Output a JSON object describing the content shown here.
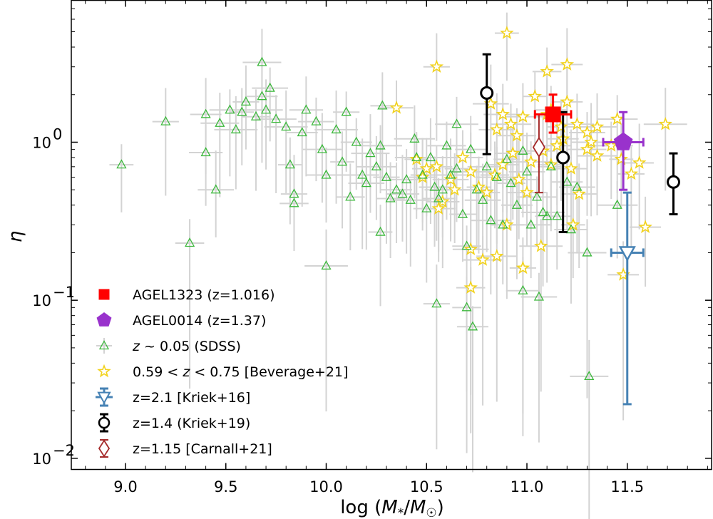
{
  "chart_data": {
    "type": "scatter",
    "title": "",
    "xlabel": "log (M*/M☉)",
    "ylabel": "η",
    "xlim": [
      8.73,
      11.92
    ],
    "ylim": [
      0.0085,
      7.9
    ],
    "yscale": "log",
    "x_ticks": [
      9.0,
      9.5,
      10.0,
      10.5,
      11.0,
      11.5
    ],
    "x_tick_labels": [
      "9.0",
      "9.5",
      "10.0",
      "10.5",
      "11.0",
      "11.5"
    ],
    "y_ticks": [
      0.01,
      0.1,
      1.0
    ],
    "y_tick_labels": [
      {
        "base": "10",
        "exp": "−2"
      },
      {
        "base": "10",
        "exp": "−1"
      },
      {
        "base": "10",
        "exp": "0"
      }
    ],
    "legend_position": "lower-left",
    "legend": [
      {
        "key": "agel1323",
        "label": "AGEL1323 (z=1.016)"
      },
      {
        "key": "agel0014",
        "label": "AGEL0014 (z=1.37)"
      },
      {
        "key": "sdss",
        "label_parts": [
          "z",
          " ~ 0.05 (SDSS)"
        ]
      },
      {
        "key": "beverage",
        "label_parts": [
          "0.59 < ",
          "z",
          " < 0.75 [Beverage+21]"
        ]
      },
      {
        "key": "kriek16",
        "label": "z=2.1 [Kriek+16]"
      },
      {
        "key": "kriek19",
        "label": "z=1.4 (Kriek+19)"
      },
      {
        "key": "carnall",
        "label": "z=1.15 [Carnall+21]"
      }
    ],
    "colors": {
      "agel1323": "#ff0000",
      "agel0014": "#9932cc",
      "sdss": "#3cb83c",
      "beverage": "#f2d21b",
      "kriek16": "#4682b4",
      "kriek19": "#000000",
      "carnall": "#a52a2a",
      "errorbar_light": "#d3d3d3"
    },
    "series": [
      {
        "name": "AGEL1323 (z=1.016)",
        "key": "agel1323",
        "marker": "square",
        "points": [
          {
            "x": 11.13,
            "y": 1.5,
            "xerr": [
              0.09,
              0.09
            ],
            "ylo": 1.15,
            "yhi": 2.0
          }
        ]
      },
      {
        "name": "AGEL0014 (z=1.37)",
        "key": "agel0014",
        "marker": "pentagon",
        "points": [
          {
            "x": 11.48,
            "y": 1.0,
            "xerr": [
              0.1,
              0.1
            ],
            "ylo": 0.5,
            "yhi": 1.55
          }
        ]
      },
      {
        "name": "z=2.1 [Kriek+16]",
        "key": "kriek16",
        "marker": "triangle-down-open",
        "points": [
          {
            "x": 11.5,
            "y": 0.2,
            "xerr": [
              0.08,
              0.08
            ],
            "ylo": 0.022,
            "yhi": 0.48
          }
        ]
      },
      {
        "name": "z=1.4 (Kriek+19)",
        "key": "kriek19",
        "marker": "circle-open",
        "points": [
          {
            "x": 10.8,
            "y": 2.05,
            "ylo": 0.84,
            "yhi": 3.6
          },
          {
            "x": 11.18,
            "y": 0.8,
            "ylo": 0.27,
            "yhi": 1.55
          },
          {
            "x": 11.73,
            "y": 0.56,
            "ylo": 0.35,
            "yhi": 0.85
          }
        ]
      },
      {
        "name": "z=1.15 [Carnall+21]",
        "key": "carnall",
        "marker": "diamond-open",
        "points": [
          {
            "x": 11.06,
            "y": 0.93,
            "ylo": 0.48,
            "yhi": 1.5
          }
        ]
      },
      {
        "name": "z ~ 0.05 (SDSS)",
        "key": "sdss",
        "marker": "triangle-up-open",
        "points": [
          {
            "x": 8.98,
            "y": 0.72
          },
          {
            "x": 9.2,
            "y": 1.35
          },
          {
            "x": 9.32,
            "y": 0.23
          },
          {
            "x": 9.4,
            "y": 1.5
          },
          {
            "x": 9.4,
            "y": 0.86
          },
          {
            "x": 9.45,
            "y": 0.5
          },
          {
            "x": 9.47,
            "y": 1.32
          },
          {
            "x": 9.52,
            "y": 1.6
          },
          {
            "x": 9.55,
            "y": 1.2
          },
          {
            "x": 9.58,
            "y": 1.55
          },
          {
            "x": 9.6,
            "y": 1.8
          },
          {
            "x": 9.65,
            "y": 1.45
          },
          {
            "x": 9.68,
            "y": 1.95
          },
          {
            "x": 9.7,
            "y": 1.6
          },
          {
            "x": 9.72,
            "y": 2.2
          },
          {
            "x": 9.68,
            "y": 3.2
          },
          {
            "x": 9.75,
            "y": 1.4
          },
          {
            "x": 9.8,
            "y": 1.25
          },
          {
            "x": 9.82,
            "y": 0.72
          },
          {
            "x": 9.84,
            "y": 0.47
          },
          {
            "x": 9.84,
            "y": 0.41
          },
          {
            "x": 9.88,
            "y": 1.15
          },
          {
            "x": 9.9,
            "y": 1.6
          },
          {
            "x": 9.95,
            "y": 1.35
          },
          {
            "x": 9.98,
            "y": 0.9
          },
          {
            "x": 10.0,
            "y": 0.62
          },
          {
            "x": 10.05,
            "y": 1.2
          },
          {
            "x": 10.08,
            "y": 0.75
          },
          {
            "x": 10.1,
            "y": 1.55
          },
          {
            "x": 10.12,
            "y": 0.45
          },
          {
            "x": 10.15,
            "y": 1.0
          },
          {
            "x": 10.18,
            "y": 0.62
          },
          {
            "x": 10.2,
            "y": 0.55
          },
          {
            "x": 10.22,
            "y": 0.85
          },
          {
            "x": 10.25,
            "y": 0.7
          },
          {
            "x": 10.27,
            "y": 0.95
          },
          {
            "x": 10.28,
            "y": 1.7
          },
          {
            "x": 10.3,
            "y": 0.6
          },
          {
            "x": 10.32,
            "y": 0.44
          },
          {
            "x": 10.35,
            "y": 0.5
          },
          {
            "x": 10.38,
            "y": 0.47
          },
          {
            "x": 10.4,
            "y": 0.58
          },
          {
            "x": 10.42,
            "y": 0.43
          },
          {
            "x": 10.44,
            "y": 1.05
          },
          {
            "x": 10.45,
            "y": 0.8
          },
          {
            "x": 10.48,
            "y": 0.62
          },
          {
            "x": 10.5,
            "y": 0.38
          },
          {
            "x": 10.52,
            "y": 0.8
          },
          {
            "x": 10.54,
            "y": 0.52
          },
          {
            "x": 10.56,
            "y": 0.44
          },
          {
            "x": 10.58,
            "y": 0.5
          },
          {
            "x": 10.6,
            "y": 0.95
          },
          {
            "x": 10.62,
            "y": 0.62
          },
          {
            "x": 10.65,
            "y": 1.3
          },
          {
            "x": 10.65,
            "y": 0.68
          },
          {
            "x": 10.68,
            "y": 0.35
          },
          {
            "x": 10.7,
            "y": 0.22
          },
          {
            "x": 10.72,
            "y": 0.9
          },
          {
            "x": 10.75,
            "y": 0.5
          },
          {
            "x": 10.78,
            "y": 0.43
          },
          {
            "x": 10.8,
            "y": 0.7
          },
          {
            "x": 10.82,
            "y": 0.32
          },
          {
            "x": 10.85,
            "y": 0.6
          },
          {
            "x": 10.88,
            "y": 0.3
          },
          {
            "x": 10.9,
            "y": 0.78
          },
          {
            "x": 10.92,
            "y": 0.55
          },
          {
            "x": 10.95,
            "y": 0.4
          },
          {
            "x": 10.98,
            "y": 0.88
          },
          {
            "x": 11.0,
            "y": 0.65
          },
          {
            "x": 11.02,
            "y": 0.3
          },
          {
            "x": 11.05,
            "y": 0.45
          },
          {
            "x": 11.08,
            "y": 0.36
          },
          {
            "x": 11.1,
            "y": 0.34
          },
          {
            "x": 11.12,
            "y": 0.7
          },
          {
            "x": 11.15,
            "y": 0.34
          },
          {
            "x": 11.2,
            "y": 0.56
          },
          {
            "x": 11.22,
            "y": 0.28
          },
          {
            "x": 11.25,
            "y": 0.52
          },
          {
            "x": 11.3,
            "y": 0.2
          },
          {
            "x": 11.45,
            "y": 0.4
          },
          {
            "x": 10.0,
            "y": 0.165
          },
          {
            "x": 10.27,
            "y": 0.27
          },
          {
            "x": 10.55,
            "y": 0.095
          },
          {
            "x": 10.7,
            "y": 0.09
          },
          {
            "x": 10.73,
            "y": 0.068
          },
          {
            "x": 10.98,
            "y": 0.115
          },
          {
            "x": 11.06,
            "y": 0.105
          },
          {
            "x": 11.31,
            "y": 0.033
          }
        ]
      },
      {
        "name": "0.59 < z < 0.75 [Beverage+21]",
        "key": "beverage",
        "marker": "star-open",
        "points": [
          {
            "x": 10.9,
            "y": 4.9
          },
          {
            "x": 10.55,
            "y": 3.0
          },
          {
            "x": 11.1,
            "y": 2.8
          },
          {
            "x": 11.2,
            "y": 3.1
          },
          {
            "x": 10.35,
            "y": 1.65
          },
          {
            "x": 10.82,
            "y": 1.75
          },
          {
            "x": 10.88,
            "y": 1.5
          },
          {
            "x": 10.92,
            "y": 1.3
          },
          {
            "x": 10.98,
            "y": 1.45
          },
          {
            "x": 11.04,
            "y": 1.95
          },
          {
            "x": 11.1,
            "y": 1.5
          },
          {
            "x": 11.17,
            "y": 1.25
          },
          {
            "x": 11.2,
            "y": 1.8
          },
          {
            "x": 11.25,
            "y": 1.3
          },
          {
            "x": 11.3,
            "y": 1.15
          },
          {
            "x": 11.35,
            "y": 1.25
          },
          {
            "x": 11.45,
            "y": 1.4
          },
          {
            "x": 11.69,
            "y": 1.3
          },
          {
            "x": 10.45,
            "y": 0.78
          },
          {
            "x": 10.48,
            "y": 0.6
          },
          {
            "x": 10.5,
            "y": 0.68
          },
          {
            "x": 10.55,
            "y": 0.7
          },
          {
            "x": 10.58,
            "y": 0.42
          },
          {
            "x": 10.62,
            "y": 0.58
          },
          {
            "x": 10.64,
            "y": 0.5
          },
          {
            "x": 10.68,
            "y": 0.8
          },
          {
            "x": 10.72,
            "y": 0.65
          },
          {
            "x": 10.76,
            "y": 0.52
          },
          {
            "x": 10.8,
            "y": 0.48
          },
          {
            "x": 10.84,
            "y": 0.62
          },
          {
            "x": 10.88,
            "y": 0.72
          },
          {
            "x": 10.9,
            "y": 0.3
          },
          {
            "x": 10.93,
            "y": 0.85
          },
          {
            "x": 10.96,
            "y": 0.58
          },
          {
            "x": 11.0,
            "y": 0.48
          },
          {
            "x": 11.02,
            "y": 0.75
          },
          {
            "x": 11.08,
            "y": 0.88
          },
          {
            "x": 11.12,
            "y": 0.72
          },
          {
            "x": 11.15,
            "y": 0.95
          },
          {
            "x": 11.18,
            "y": 1.05
          },
          {
            "x": 11.22,
            "y": 0.68
          },
          {
            "x": 11.26,
            "y": 0.47
          },
          {
            "x": 11.3,
            "y": 0.9
          },
          {
            "x": 11.35,
            "y": 0.82
          },
          {
            "x": 11.42,
            "y": 0.95
          },
          {
            "x": 11.47,
            "y": 0.78
          },
          {
            "x": 11.52,
            "y": 0.63
          },
          {
            "x": 11.56,
            "y": 0.74
          },
          {
            "x": 11.59,
            "y": 0.29
          },
          {
            "x": 10.56,
            "y": 0.38
          },
          {
            "x": 10.72,
            "y": 0.21
          },
          {
            "x": 10.78,
            "y": 0.18
          },
          {
            "x": 10.85,
            "y": 0.19
          },
          {
            "x": 11.07,
            "y": 0.22
          },
          {
            "x": 11.23,
            "y": 0.3
          },
          {
            "x": 10.98,
            "y": 0.16
          },
          {
            "x": 10.72,
            "y": 0.12
          },
          {
            "x": 11.48,
            "y": 0.145
          },
          {
            "x": 11.12,
            "y": 1.6
          },
          {
            "x": 10.85,
            "y": 1.2
          },
          {
            "x": 10.95,
            "y": 1.1
          },
          {
            "x": 11.32,
            "y": 1.0
          }
        ]
      }
    ]
  }
}
